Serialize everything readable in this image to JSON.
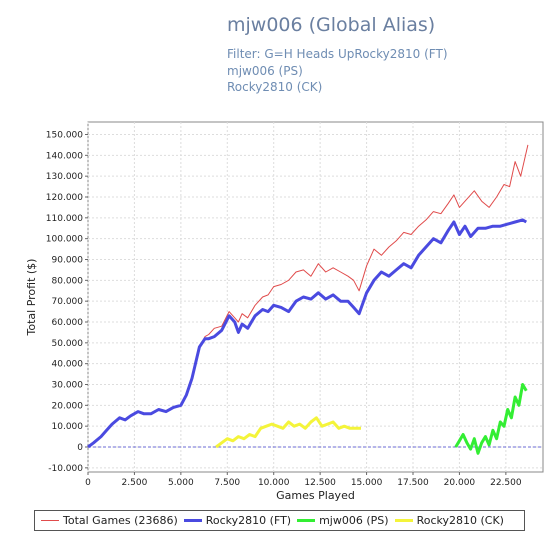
{
  "title": "mjw006 (Global Alias)",
  "subtitles": [
    "Filter: G=H Heads UpRocky2810 (FT)",
    "mjw006 (PS)",
    "Rocky2810 (CK)"
  ],
  "chart_data": {
    "type": "line",
    "xlabel": "Games Played",
    "ylabel": "Total Profit ($)",
    "xlim": [
      0,
      24500
    ],
    "ylim": [
      -12,
      156
    ],
    "x_ticks": [
      "0",
      "2.500",
      "5.000",
      "7.500",
      "10.000",
      "12.500",
      "15.000",
      "17.500",
      "20.000",
      "22.500"
    ],
    "x_tick_values": [
      0,
      2500,
      5000,
      7500,
      10000,
      12500,
      15000,
      17500,
      20000,
      22500
    ],
    "y_ticks": [
      "-10.000",
      "0",
      "10.000",
      "20.000",
      "30.000",
      "40.000",
      "50.000",
      "60.000",
      "70.000",
      "80.000",
      "90.000",
      "100.000",
      "110.000",
      "120.000",
      "130.000",
      "140.000",
      "150.000"
    ],
    "y_tick_values": [
      -10,
      0,
      10,
      20,
      30,
      40,
      50,
      60,
      70,
      80,
      90,
      100,
      110,
      120,
      130,
      140,
      150
    ],
    "grid": true,
    "legend_position": "bottom",
    "zero_line_color": "#6b6bd6",
    "series": [
      {
        "name": "Total Games (23686)",
        "color": "#e04b4b",
        "width": 1,
        "x": [
          0,
          300,
          700,
          1000,
          1300,
          1700,
          2000,
          2300,
          2700,
          3000,
          3400,
          3800,
          4200,
          4600,
          5000,
          5300,
          5600,
          6000,
          6300,
          6500,
          6800,
          7200,
          7600,
          7900,
          8100,
          8300,
          8600,
          9000,
          9400,
          9700,
          10000,
          10400,
          10800,
          11200,
          11600,
          12000,
          12400,
          12800,
          13200,
          13600,
          14000,
          14300,
          14600,
          15000,
          15400,
          15800,
          16200,
          16600,
          17000,
          17400,
          17800,
          18200,
          18600,
          19000,
          19400,
          19700,
          20000,
          20400,
          20800,
          21200,
          21600,
          22000,
          22400,
          22700,
          23000,
          23300,
          23686
        ],
        "y": [
          0,
          2,
          5,
          8,
          11,
          14,
          13,
          15,
          17,
          16,
          16,
          18,
          17,
          19,
          20,
          25,
          33,
          48,
          53,
          54,
          57,
          58,
          65,
          62,
          60,
          64,
          62,
          68,
          72,
          73,
          77,
          78,
          80,
          84,
          85,
          82,
          88,
          84,
          86,
          84,
          82,
          80,
          75,
          87,
          95,
          92,
          96,
          99,
          103,
          102,
          106,
          109,
          113,
          112,
          117,
          121,
          115,
          119,
          123,
          118,
          115,
          120,
          126,
          125,
          137,
          130,
          145
        ]
      },
      {
        "name": "Rocky2810 (FT)",
        "color": "#4a4ae0",
        "width": 3,
        "x": [
          0,
          300,
          700,
          1000,
          1300,
          1700,
          2000,
          2300,
          2700,
          3000,
          3400,
          3800,
          4200,
          4600,
          5000,
          5300,
          5600,
          6000,
          6300,
          6500,
          6800,
          7200,
          7600,
          7900,
          8100,
          8300,
          8600,
          9000,
          9400,
          9700,
          10000,
          10400,
          10800,
          11200,
          11600,
          12000,
          12400,
          12800,
          13200,
          13600,
          14000,
          14300,
          14600,
          15000,
          15400,
          15800,
          16200,
          16600,
          17000,
          17400,
          17800,
          18200,
          18600,
          19000,
          19400,
          19700,
          20000,
          20300,
          20600,
          21000,
          21400,
          21800,
          22200,
          22600,
          23000,
          23400,
          23600
        ],
        "y": [
          0,
          2,
          5,
          8,
          11,
          14,
          13,
          15,
          17,
          16,
          16,
          18,
          17,
          19,
          20,
          25,
          33,
          48,
          52,
          52,
          53,
          56,
          63,
          60,
          55,
          59,
          57,
          63,
          66,
          65,
          68,
          67,
          65,
          70,
          72,
          71,
          74,
          71,
          73,
          70,
          70,
          67,
          64,
          74,
          80,
          84,
          82,
          85,
          88,
          86,
          92,
          96,
          100,
          98,
          104,
          108,
          102,
          106,
          101,
          105,
          105,
          106,
          106,
          107,
          108,
          109,
          108
        ]
      },
      {
        "name": "mjw006 (PS)",
        "color": "#33ee33",
        "width": 3,
        "x": [
          19800,
          20000,
          20200,
          20400,
          20600,
          20800,
          21000,
          21200,
          21400,
          21600,
          21800,
          22000,
          22200,
          22400,
          22600,
          22800,
          23000,
          23200,
          23400,
          23600
        ],
        "y": [
          0,
          3,
          6,
          2,
          -1,
          4,
          -3,
          2,
          5,
          1,
          8,
          4,
          12,
          10,
          18,
          14,
          24,
          20,
          30,
          27
        ]
      },
      {
        "name": "Rocky2810 (CK)",
        "color": "#f4f43a",
        "width": 3,
        "x": [
          6900,
          7200,
          7500,
          7800,
          8100,
          8400,
          8700,
          9000,
          9300,
          9600,
          9900,
          10200,
          10500,
          10800,
          11100,
          11400,
          11700,
          12000,
          12300,
          12600,
          12900,
          13200,
          13500,
          13800,
          14100,
          14400,
          14700
        ],
        "y": [
          0,
          2,
          4,
          3,
          5,
          4,
          6,
          5,
          9,
          10,
          11,
          10,
          9,
          12,
          10,
          11,
          9,
          12,
          14,
          10,
          11,
          12,
          9,
          10,
          9,
          9,
          9
        ]
      }
    ]
  }
}
